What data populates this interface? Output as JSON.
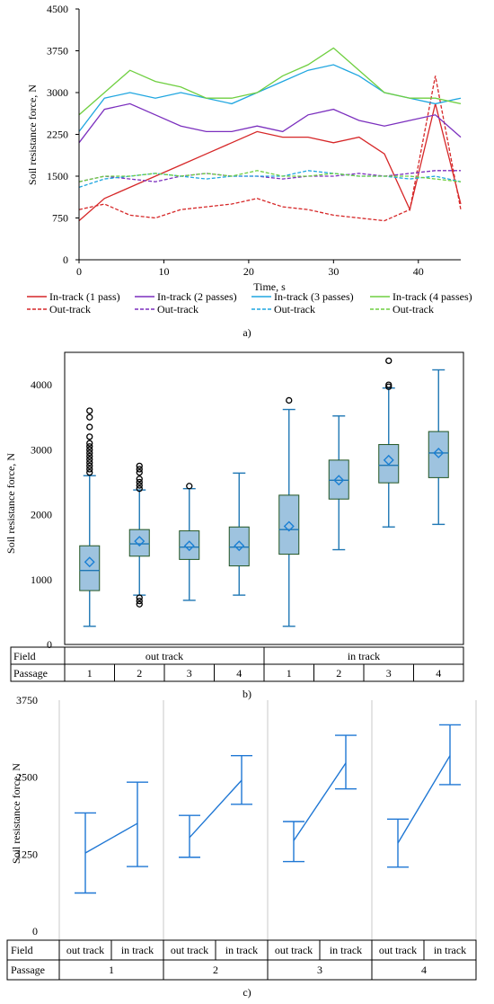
{
  "chart_data": [
    {
      "panel": "a)",
      "type": "line",
      "xlabel": "Time, s",
      "ylabel": "Soil resistance force, N",
      "xlim": [
        0,
        45
      ],
      "ylim": [
        0,
        4500
      ],
      "x_ticks": [
        "0",
        "10",
        "20",
        "30",
        "40"
      ],
      "y_ticks": [
        "0",
        "750",
        "1500",
        "2250",
        "3000",
        "3750",
        "4500"
      ],
      "grid": false,
      "legend_position": "bottom",
      "series": [
        {
          "name": "In-track (1 pass)",
          "color": "#d62728",
          "dash": "solid",
          "x": [
            0,
            3,
            6,
            9,
            12,
            15,
            18,
            21,
            24,
            27,
            30,
            33,
            36,
            39,
            42,
            45
          ],
          "y": [
            700,
            1100,
            1300,
            1500,
            1700,
            1900,
            2100,
            2300,
            2200,
            2200,
            2100,
            2200,
            1900,
            900,
            2800,
            1000
          ]
        },
        {
          "name": "Out-track",
          "color": "#d62728",
          "dash": "dashed",
          "x": [
            0,
            3,
            6,
            9,
            12,
            15,
            18,
            21,
            24,
            27,
            30,
            33,
            36,
            39,
            42,
            45
          ],
          "y": [
            900,
            1000,
            800,
            750,
            900,
            950,
            1000,
            1100,
            950,
            900,
            800,
            750,
            700,
            900,
            3300,
            900
          ]
        },
        {
          "name": "In-track (2 passes)",
          "color": "#7b2fbe",
          "dash": "solid",
          "x": [
            0,
            3,
            6,
            9,
            12,
            15,
            18,
            21,
            24,
            27,
            30,
            33,
            36,
            39,
            42,
            45
          ],
          "y": [
            2100,
            2700,
            2800,
            2600,
            2400,
            2300,
            2300,
            2400,
            2300,
            2600,
            2700,
            2500,
            2400,
            2500,
            2600,
            2200
          ]
        },
        {
          "name": "Out-track",
          "color": "#7b2fbe",
          "dash": "dashed",
          "x": [
            0,
            3,
            6,
            9,
            12,
            15,
            18,
            21,
            24,
            27,
            30,
            33,
            36,
            39,
            42,
            45
          ],
          "y": [
            1400,
            1500,
            1450,
            1400,
            1500,
            1550,
            1500,
            1500,
            1450,
            1500,
            1500,
            1550,
            1500,
            1550,
            1600,
            1600
          ]
        },
        {
          "name": "In-track (3 passes)",
          "color": "#1fa6e0",
          "dash": "solid",
          "x": [
            0,
            3,
            6,
            9,
            12,
            15,
            18,
            21,
            24,
            27,
            30,
            33,
            36,
            39,
            42,
            45
          ],
          "y": [
            2300,
            2900,
            3000,
            2900,
            3000,
            2900,
            2800,
            3000,
            3200,
            3400,
            3500,
            3300,
            3000,
            2900,
            2800,
            2900
          ]
        },
        {
          "name": "Out-track",
          "color": "#1fa6e0",
          "dash": "dashed",
          "x": [
            0,
            3,
            6,
            9,
            12,
            15,
            18,
            21,
            24,
            27,
            30,
            33,
            36,
            39,
            42,
            45
          ],
          "y": [
            1300,
            1450,
            1500,
            1550,
            1500,
            1450,
            1500,
            1500,
            1500,
            1600,
            1550,
            1500,
            1500,
            1450,
            1500,
            1400
          ]
        },
        {
          "name": "In-track (4 passes)",
          "color": "#6fcf40",
          "dash": "solid",
          "x": [
            0,
            3,
            6,
            9,
            12,
            15,
            18,
            21,
            24,
            27,
            30,
            33,
            36,
            39,
            42,
            45
          ],
          "y": [
            2600,
            3000,
            3400,
            3200,
            3100,
            2900,
            2900,
            3000,
            3300,
            3500,
            3800,
            3400,
            3000,
            2900,
            2900,
            2800
          ]
        },
        {
          "name": "Out-track",
          "color": "#6fcf40",
          "dash": "dashed",
          "x": [
            0,
            3,
            6,
            9,
            12,
            15,
            18,
            21,
            24,
            27,
            30,
            33,
            36,
            39,
            42,
            45
          ],
          "y": [
            1400,
            1500,
            1500,
            1550,
            1500,
            1550,
            1500,
            1600,
            1500,
            1500,
            1550,
            1500,
            1500,
            1500,
            1450,
            1400
          ]
        }
      ]
    },
    {
      "panel": "b)",
      "type": "box",
      "ylabel": "Soil resistance force, N",
      "ylim": [
        0,
        4500
      ],
      "y_ticks": [
        "0",
        "1000",
        "2000",
        "3000",
        "4000"
      ],
      "color": "#1f77b4",
      "box_fill": "#9ec3df",
      "table": {
        "rows": [
          {
            "label": "Field",
            "groups": [
              {
                "text": "out track",
                "span": 4
              },
              {
                "text": "in track",
                "span": 4
              }
            ]
          },
          {
            "label": "Passage",
            "cells": [
              "1",
              "2",
              "3",
              "4",
              "1",
              "2",
              "3",
              "4"
            ]
          }
        ]
      },
      "boxes": [
        {
          "field": "out track",
          "passage": "1",
          "min": 280,
          "q1": 830,
          "median": 1140,
          "q3": 1520,
          "max": 2600,
          "mean": 1270,
          "outliers": [
            2650,
            2700,
            2750,
            2800,
            2850,
            2900,
            2950,
            3000,
            3050,
            3100,
            3200,
            3350,
            3500,
            3600
          ]
        },
        {
          "field": "out track",
          "passage": "2",
          "min": 760,
          "q1": 1360,
          "median": 1550,
          "q3": 1770,
          "max": 2380,
          "mean": 1590,
          "outliers": [
            620,
            670,
            720,
            2400,
            2450,
            2500,
            2550,
            2650,
            2700,
            2750
          ]
        },
        {
          "field": "out track",
          "passage": "3",
          "min": 680,
          "q1": 1310,
          "median": 1500,
          "q3": 1750,
          "max": 2400,
          "mean": 1520,
          "outliers": [
            2440
          ]
        },
        {
          "field": "out track",
          "passage": "4",
          "min": 760,
          "q1": 1210,
          "median": 1500,
          "q3": 1810,
          "max": 2640,
          "mean": 1520,
          "outliers": []
        },
        {
          "field": "in track",
          "passage": "1",
          "min": 280,
          "q1": 1390,
          "median": 1770,
          "q3": 2300,
          "max": 3620,
          "mean": 1820,
          "outliers": [
            3760
          ]
        },
        {
          "field": "in track",
          "passage": "2",
          "min": 1460,
          "q1": 2240,
          "median": 2530,
          "q3": 2840,
          "max": 3520,
          "mean": 2530,
          "outliers": []
        },
        {
          "field": "in track",
          "passage": "3",
          "min": 1810,
          "q1": 2490,
          "median": 2760,
          "q3": 3080,
          "max": 3950,
          "mean": 2840,
          "outliers": [
            3970,
            4000,
            4370
          ]
        },
        {
          "field": "in track",
          "passage": "4",
          "min": 1850,
          "q1": 2570,
          "median": 2950,
          "q3": 3280,
          "max": 4230,
          "mean": 2950,
          "outliers": []
        }
      ]
    },
    {
      "panel": "c)",
      "type": "interval",
      "ylabel": "Soil resistance force, N",
      "ylim": [
        0,
        3750
      ],
      "y_ticks": [
        "0",
        "1250",
        "2500",
        "3750"
      ],
      "color": "#1f77d4",
      "table": {
        "rows": [
          {
            "label": "Field",
            "cells": [
              "out track",
              "in track",
              "out track",
              "in track",
              "out track",
              "in track",
              "out track",
              "in track"
            ]
          },
          {
            "label": "Passage",
            "groups": [
              {
                "text": "1",
                "span": 2
              },
              {
                "text": "2",
                "span": 2
              },
              {
                "text": "3",
                "span": 2
              },
              {
                "text": "4",
                "span": 2
              }
            ]
          }
        ]
      },
      "intervals": [
        {
          "passage": "1",
          "out_track": {
            "mean": 1270,
            "low": 620,
            "high": 1920
          },
          "in_track": {
            "mean": 1750,
            "low": 1050,
            "high": 2420
          }
        },
        {
          "passage": "2",
          "out_track": {
            "mean": 1520,
            "low": 1200,
            "high": 1880
          },
          "in_track": {
            "mean": 2450,
            "low": 2060,
            "high": 2850
          }
        },
        {
          "passage": "3",
          "out_track": {
            "mean": 1470,
            "low": 1130,
            "high": 1780
          },
          "in_track": {
            "mean": 2730,
            "low": 2310,
            "high": 3180
          }
        },
        {
          "passage": "4",
          "out_track": {
            "mean": 1430,
            "low": 1040,
            "high": 1820
          },
          "in_track": {
            "mean": 2850,
            "low": 2380,
            "high": 3350
          }
        }
      ]
    }
  ]
}
